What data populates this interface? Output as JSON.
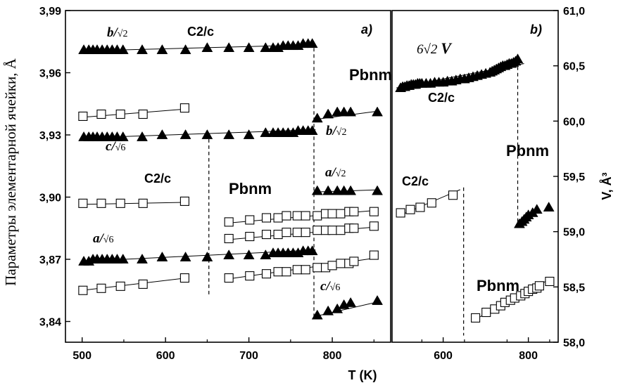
{
  "figure": {
    "xlabel": "T (K)",
    "ylabel_left": "Параметры элементарной ячейки, Å",
    "ylabel_right": "V, Å³",
    "panel_a_tag": "a)",
    "panel_b_tag": "b)"
  },
  "chart_data": [
    {
      "type": "scatter",
      "panel": "a)",
      "xlabel": "T (K)",
      "ylabel": "Параметры элементарной ячейки, Å",
      "xlim": [
        480,
        870
      ],
      "ylim": [
        3.83,
        3.99
      ],
      "xticks": [
        "500",
        "600",
        "700",
        "800"
      ],
      "yticks": [
        "3,84",
        "3,87",
        "3,90",
        "3,93",
        "3,96",
        "3,99"
      ],
      "transition_lines_x": [
        652,
        778
      ],
      "annotations": {
        "b_over_sqrt2_top": "b/√2",
        "c2c_top": "C2/c",
        "pbnm_right": "Pbnm",
        "c_over_sqrt6_left": "c/√6",
        "b_over_sqrt2_right": "b/√2",
        "c2c_mid": "C2/c",
        "pbnm_mid": "Pbnm",
        "a_over_sqrt2_right": "a/√2",
        "a_over_sqrt6_left": "a/√6",
        "c_over_sqrt6_right": "c/√6"
      },
      "series": [
        {
          "marker": "filled-triangle",
          "x": [
            502,
            508,
            513,
            518,
            524,
            530,
            536,
            542,
            549,
            572,
            596,
            624,
            650,
            676,
            700,
            720,
            729,
            735,
            741,
            747,
            753,
            759,
            765,
            771,
            776
          ],
          "y": [
            3.971,
            3.971,
            3.971,
            3.971,
            3.971,
            3.971,
            3.971,
            3.971,
            3.971,
            3.971,
            3.971,
            3.971,
            3.972,
            3.972,
            3.972,
            3.972,
            3.972,
            3.972,
            3.973,
            3.973,
            3.973,
            3.973,
            3.974,
            3.974,
            3.974
          ],
          "fit": [
            [
              500,
              3.9705
            ],
            [
              780,
              3.9735
            ]
          ]
        },
        {
          "marker": "filled-triangle",
          "x": [
            502,
            508,
            513,
            518,
            524,
            530,
            536,
            542,
            549,
            572,
            596,
            624,
            650,
            676,
            700,
            720,
            729,
            735,
            741,
            747,
            753,
            759,
            765,
            771,
            776
          ],
          "y": [
            3.929,
            3.929,
            3.929,
            3.929,
            3.929,
            3.929,
            3.929,
            3.929,
            3.929,
            3.929,
            3.93,
            3.93,
            3.93,
            3.93,
            3.93,
            3.931,
            3.931,
            3.931,
            3.931,
            3.931,
            3.931,
            3.932,
            3.932,
            3.932,
            3.932
          ],
          "fit": [
            [
              500,
              3.9285
            ],
            [
              780,
              3.9325
            ]
          ]
        },
        {
          "marker": "filled-triangle",
          "x": [
            502,
            508,
            513,
            518,
            524,
            530,
            536,
            542,
            549,
            572,
            596,
            624,
            650,
            676,
            700,
            720,
            729,
            735,
            741,
            747,
            753,
            759,
            765,
            771,
            776
          ],
          "y": [
            3.869,
            3.869,
            3.87,
            3.87,
            3.87,
            3.87,
            3.87,
            3.87,
            3.87,
            3.87,
            3.871,
            3.871,
            3.871,
            3.872,
            3.872,
            3.872,
            3.873,
            3.873,
            3.873,
            3.873,
            3.873,
            3.873,
            3.874,
            3.874,
            3.874
          ],
          "fit": [
            [
              500,
              3.869
            ],
            [
              780,
              3.8745
            ]
          ]
        },
        {
          "marker": "filled-triangle",
          "x": [
            782,
            795,
            806,
            814,
            822,
            854
          ],
          "y": [
            3.938,
            3.94,
            3.941,
            3.941,
            3.941,
            3.941
          ],
          "fit": [
            [
              780,
              3.9375
            ],
            [
              855,
              3.9415
            ]
          ]
        },
        {
          "marker": "filled-triangle",
          "x": [
            782,
            795,
            806,
            814,
            822,
            854
          ],
          "y": [
            3.903,
            3.903,
            3.903,
            3.903,
            3.903,
            3.903
          ],
          "fit": [
            [
              780,
              3.9025
            ],
            [
              855,
              3.9035
            ]
          ]
        },
        {
          "marker": "filled-triangle",
          "x": [
            782,
            795,
            806,
            814,
            822,
            854
          ],
          "y": [
            3.843,
            3.845,
            3.846,
            3.848,
            3.849,
            3.85
          ],
          "fit": [
            [
              780,
              3.8425
            ],
            [
              855,
              3.8495
            ]
          ]
        },
        {
          "marker": "open-square",
          "x": [
            501,
            523,
            546,
            573,
            623
          ],
          "y": [
            3.939,
            3.94,
            3.94,
            3.94,
            3.943
          ],
          "fit": [
            [
              500,
              3.9385
            ],
            [
              625,
              3.9425
            ]
          ]
        },
        {
          "marker": "open-square",
          "x": [
            501,
            523,
            546,
            573,
            623
          ],
          "y": [
            3.897,
            3.897,
            3.897,
            3.897,
            3.898
          ],
          "fit": [
            [
              500,
              3.8965
            ],
            [
              625,
              3.8975
            ]
          ]
        },
        {
          "marker": "open-square",
          "x": [
            501,
            523,
            546,
            573,
            623
          ],
          "y": [
            3.855,
            3.856,
            3.857,
            3.858,
            3.861
          ],
          "fit": [
            [
              500,
              3.855
            ],
            [
              625,
              3.861
            ]
          ]
        },
        {
          "marker": "open-square",
          "x": [
            676,
            701,
            721,
            735,
            745,
            758,
            768,
            782,
            792,
            800,
            810,
            820,
            826,
            850
          ],
          "y": [
            3.888,
            3.889,
            3.89,
            3.89,
            3.891,
            3.891,
            3.891,
            3.891,
            3.892,
            3.892,
            3.892,
            3.893,
            3.893,
            3.893
          ],
          "fit": [
            [
              675,
              3.8875
            ],
            [
              850,
              3.8935
            ]
          ]
        },
        {
          "marker": "open-square",
          "x": [
            676,
            701,
            721,
            735,
            745,
            758,
            768,
            782,
            792,
            800,
            810,
            820,
            826,
            850
          ],
          "y": [
            3.88,
            3.881,
            3.882,
            3.882,
            3.883,
            3.883,
            3.883,
            3.884,
            3.884,
            3.884,
            3.884,
            3.885,
            3.885,
            3.886
          ],
          "fit": [
            [
              675,
              3.8795
            ],
            [
              850,
              3.8855
            ]
          ]
        },
        {
          "marker": "open-square",
          "x": [
            676,
            701,
            721,
            735,
            745,
            758,
            768,
            782,
            792,
            800,
            810,
            820,
            826,
            850
          ],
          "y": [
            3.861,
            3.862,
            3.863,
            3.864,
            3.864,
            3.865,
            3.865,
            3.866,
            3.866,
            3.867,
            3.868,
            3.868,
            3.869,
            3.872
          ],
          "fit": [
            [
              675,
              3.8605
            ],
            [
              850,
              3.8705
            ]
          ]
        }
      ]
    },
    {
      "type": "scatter",
      "panel": "b)",
      "xlabel": "T (K)",
      "ylabel": "V, Å³",
      "xlim": [
        480,
        870
      ],
      "ylim": [
        58.0,
        61.0
      ],
      "xticks": [
        "600",
        "800"
      ],
      "yticks": [
        "58,0",
        "58,5",
        "59,0",
        "59,5",
        "60,0",
        "60,5",
        "61,0"
      ],
      "transition_lines_x": [
        648,
        775
      ],
      "annotations": {
        "volume_label": "6√2 V",
        "c2c_top": "C2/c",
        "pbnm_right": "Pbnm",
        "c2c_mid": "C2/c",
        "pbnm_bottom": "Pbnm"
      },
      "series": [
        {
          "marker": "filled-triangle",
          "x": [
            500,
            505,
            510,
            515,
            520,
            525,
            530,
            535,
            540,
            545,
            550,
            560,
            570,
            580,
            590,
            600,
            610,
            620,
            630,
            640,
            650,
            660,
            670,
            680,
            690,
            700,
            710,
            715,
            720,
            725,
            730,
            735,
            740,
            745,
            750,
            755,
            760,
            765,
            770,
            775
          ],
          "y": [
            60.3,
            60.31,
            60.31,
            60.32,
            60.32,
            60.33,
            60.33,
            60.33,
            60.34,
            60.34,
            60.34,
            60.34,
            60.34,
            60.35,
            60.35,
            60.35,
            60.36,
            60.36,
            60.37,
            60.38,
            60.38,
            60.39,
            60.4,
            60.41,
            60.42,
            60.43,
            60.44,
            60.45,
            60.46,
            60.47,
            60.48,
            60.49,
            60.5,
            60.5,
            60.51,
            60.52,
            60.52,
            60.53,
            60.54,
            60.56
          ],
          "fit": [
            [
              490,
              60.3
            ],
            [
              790,
              60.52
            ]
          ]
        },
        {
          "marker": "filled-triangle",
          "x": [
            779,
            785,
            790,
            795,
            800,
            810,
            820,
            848
          ],
          "y": [
            59.07,
            59.09,
            59.11,
            59.13,
            59.15,
            59.17,
            59.2,
            59.22
          ]
        },
        {
          "marker": "open-square",
          "x": [
            500,
            523,
            546,
            573,
            623
          ],
          "y": [
            59.17,
            59.2,
            59.22,
            59.26,
            59.33
          ],
          "fit": [
            [
              500,
              59.15
            ],
            [
              640,
              59.38
            ]
          ]
        },
        {
          "marker": "open-square",
          "x": [
            676,
            701,
            721,
            735,
            745,
            758,
            768,
            782,
            792,
            800,
            810,
            820,
            826,
            850
          ],
          "y": [
            58.22,
            58.27,
            58.3,
            58.33,
            58.36,
            58.38,
            58.4,
            58.42,
            58.44,
            58.46,
            58.48,
            58.49,
            58.51,
            58.55
          ],
          "fit": [
            [
              672,
              58.2
            ],
            [
              850,
              58.57
            ]
          ]
        }
      ]
    }
  ]
}
